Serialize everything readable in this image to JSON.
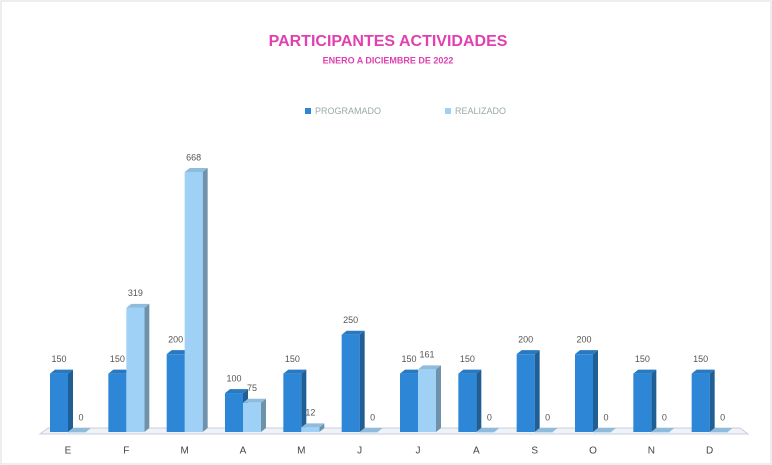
{
  "chart_data": {
    "type": "bar3d",
    "title": "PARTICIPANTES ACTIVIDADES",
    "subtitle": "ENERO A DICIEMBRE DE 2022",
    "categories": [
      "E",
      "F",
      "M",
      "A",
      "M",
      "J",
      "J",
      "A",
      "S",
      "O",
      "N",
      "D"
    ],
    "series": [
      {
        "name": "PROGRAMADO",
        "color": "#2e86d6",
        "values": [
          150,
          150,
          200,
          100,
          150,
          250,
          150,
          150,
          200,
          200,
          150,
          150
        ]
      },
      {
        "name": "REALIZADO",
        "color": "#9fd0f5",
        "values": [
          0,
          319,
          668,
          75,
          12,
          0,
          161,
          0,
          0,
          0,
          0,
          0
        ]
      }
    ],
    "legend": "top"
  }
}
